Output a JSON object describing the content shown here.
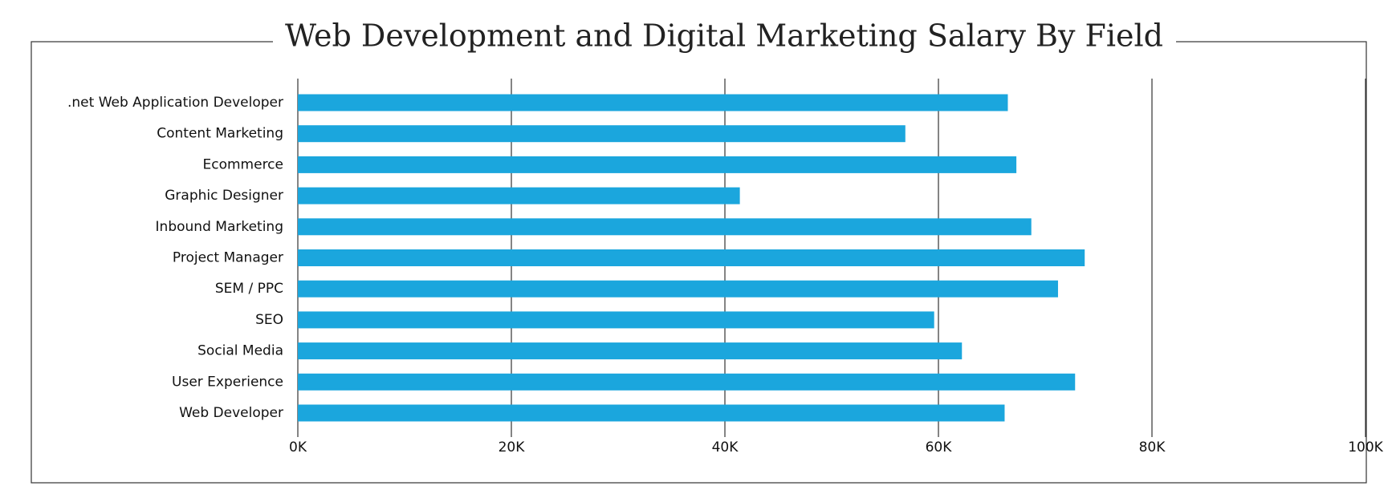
{
  "chart_data": {
    "type": "bar",
    "orientation": "horizontal",
    "title": "Web Development and Digital Marketing Salary By Field",
    "categories": [
      ".net Web Application Developer",
      "Content Marketing",
      "Ecommerce",
      "Graphic Designer",
      "Inbound Marketing",
      "Project Manager",
      "SEM / PPC",
      "SEO",
      "Social Media",
      "User Experience",
      "Web Developer"
    ],
    "values": [
      66500,
      56900,
      67300,
      41400,
      68700,
      73700,
      71200,
      59600,
      62200,
      72800,
      66200
    ],
    "color": "#1ba6dd",
    "xlim": [
      0,
      100000
    ],
    "xticks": [
      {
        "value": 0,
        "label": "0K"
      },
      {
        "value": 20000,
        "label": "20K"
      },
      {
        "value": 40000,
        "label": "40K"
      },
      {
        "value": 60000,
        "label": "60K"
      },
      {
        "value": 80000,
        "label": "80K"
      },
      {
        "value": 100000,
        "label": "100K"
      }
    ],
    "grid": true
  }
}
